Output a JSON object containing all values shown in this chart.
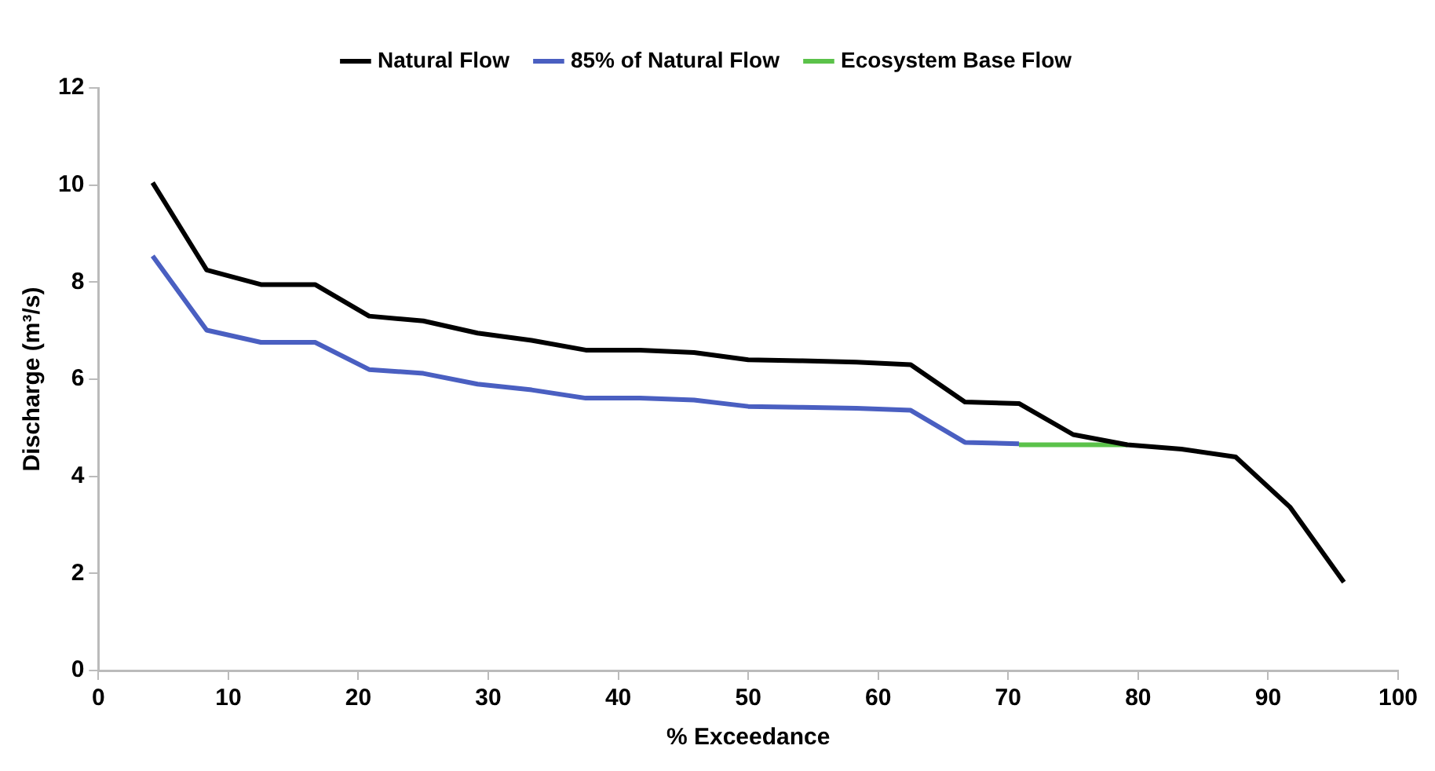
{
  "chart_data": {
    "type": "line",
    "xlabel": "% Exceedance",
    "ylabel": "Discharge (m³/s)",
    "xlim": [
      0,
      100
    ],
    "xticks": [
      0,
      10,
      20,
      30,
      40,
      50,
      60,
      70,
      80,
      90,
      100
    ],
    "ylim": [
      0,
      12
    ],
    "yticks": [
      0,
      2,
      4,
      6,
      8,
      10,
      12
    ],
    "grid": false,
    "legend": "top",
    "marker": "none",
    "line_style": "solid",
    "series": [
      {
        "name": "Natural Flow",
        "color": "#000000",
        "x": [
          4.17,
          8.33,
          12.5,
          16.67,
          20.83,
          25,
          29.17,
          33.33,
          37.5,
          41.67,
          45.83,
          50,
          54.17,
          58.33,
          62.5,
          66.67,
          70.83,
          75,
          79.17,
          83.33,
          87.5,
          91.67,
          95.83
        ],
        "values": [
          10.05,
          8.25,
          7.95,
          7.95,
          7.3,
          7.2,
          6.95,
          6.8,
          6.6,
          6.6,
          6.55,
          6.4,
          6.38,
          6.35,
          6.3,
          5.53,
          5.5,
          4.86,
          4.65,
          4.56,
          4.4,
          3.37,
          1.82
        ]
      },
      {
        "name": "85% of Natural Flow",
        "color": "#4a5fc1",
        "x": [
          4.17,
          8.33,
          12.5,
          16.67,
          20.83,
          25,
          29.17,
          33.33,
          37.5,
          41.67,
          45.83,
          50,
          54.17,
          58.33,
          62.5,
          66.67,
          70.83
        ],
        "values": [
          8.54,
          7.01,
          6.76,
          6.76,
          6.2,
          6.12,
          5.9,
          5.78,
          5.61,
          5.61,
          5.57,
          5.44,
          5.42,
          5.4,
          5.36,
          4.7,
          4.67
        ]
      },
      {
        "name": "Ecosystem Base Flow",
        "color": "#5bc24a",
        "x": [
          70.83,
          75,
          79.17
        ],
        "values": [
          4.65,
          4.65,
          4.65
        ]
      }
    ]
  }
}
